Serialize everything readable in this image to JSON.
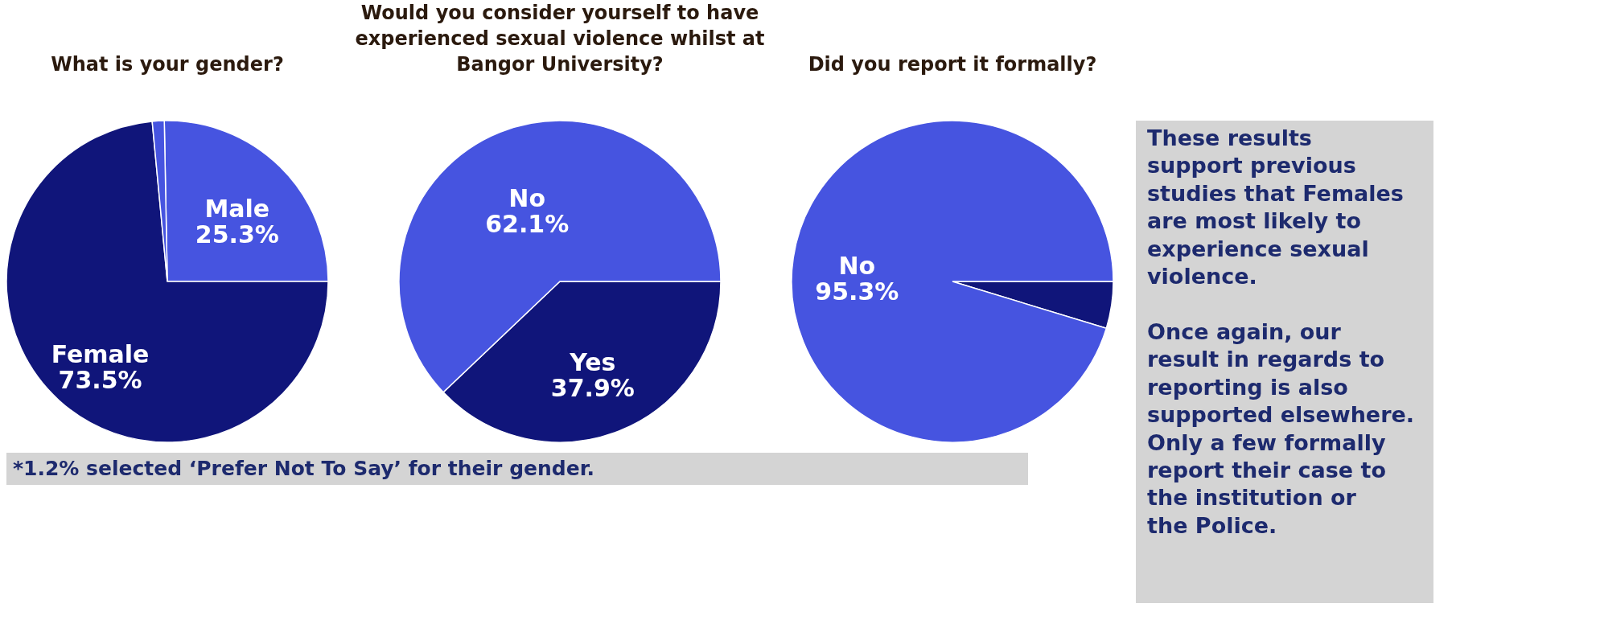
{
  "chart_data": [
    {
      "type": "pie",
      "title": "What is your gender?",
      "categories": [
        "Male",
        "Female",
        null
      ],
      "values": [
        25.3,
        73.5,
        1.2
      ],
      "colors": [
        "#4654e0",
        "#10157a",
        "#4654e0"
      ],
      "value_labels": [
        "25.3%",
        "73.5%",
        null
      ],
      "annotations": [
        "*1.2% selected ‘Prefer Not To Say’ for their gender."
      ]
    },
    {
      "type": "pie",
      "title": "Would you consider yourself to have experienced sexual violence whilst at Bangor University?",
      "categories": [
        "Yes",
        "No"
      ],
      "values": [
        37.9,
        62.1
      ],
      "colors": [
        "#10157a",
        "#4654e0"
      ],
      "value_labels": [
        "37.9%",
        "62.1%"
      ]
    },
    {
      "type": "pie",
      "title": "Did you report it formally?",
      "categories": [
        null,
        "No"
      ],
      "values": [
        4.7,
        95.3
      ],
      "colors": [
        "#10157a",
        "#4654e0"
      ],
      "value_labels": [
        null,
        "95.3%"
      ]
    },
    {
      "type": "other",
      "annotations": [
        "These results support previous studies that Females are most likely to experience sexual violence.",
        "Once again, our result in regards to reporting is also supported elsewhere. Only a few formally report their case to the institution or the Police."
      ]
    }
  ]
}
